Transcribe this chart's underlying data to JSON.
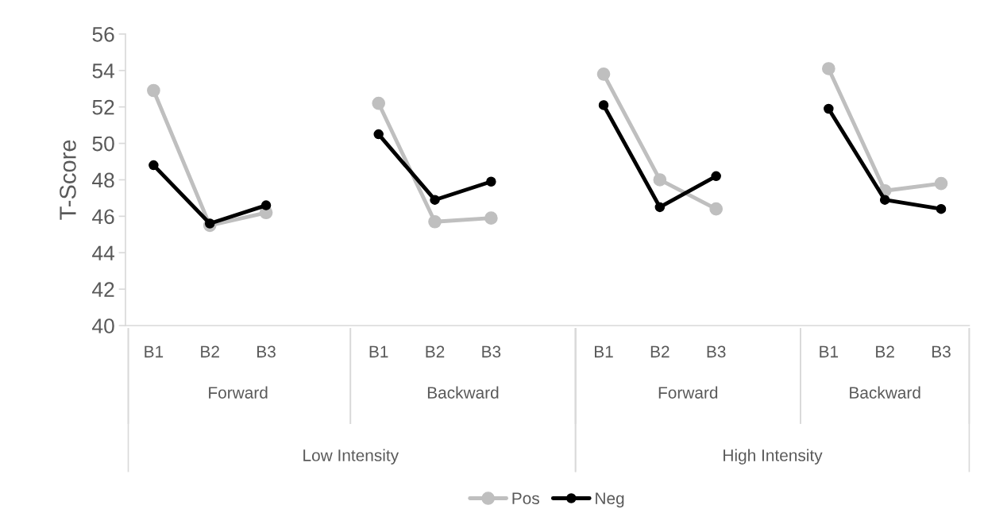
{
  "chart_data": {
    "type": "line",
    "ylabel": "T-Score",
    "categories": [
      "B1",
      "B2",
      "B3",
      null,
      "B1",
      "B2",
      "B3",
      null,
      "B1",
      "B2",
      "B3",
      null,
      "B1",
      "B2",
      "B3"
    ],
    "series": [
      {
        "name": "Pos",
        "color": "#bfbfbf",
        "values": [
          52.9,
          45.5,
          46.2,
          null,
          52.2,
          45.7,
          45.9,
          null,
          53.8,
          48.0,
          46.4,
          null,
          54.1,
          47.4,
          47.8
        ]
      },
      {
        "name": "Neg",
        "color": "#000000",
        "values": [
          48.8,
          45.6,
          46.6,
          null,
          50.5,
          46.9,
          47.9,
          null,
          52.1,
          46.5,
          48.2,
          null,
          51.9,
          46.9,
          46.4
        ]
      }
    ],
    "ylim": [
      40,
      56
    ],
    "yticks": [
      40,
      42,
      44,
      46,
      48,
      50,
      52,
      54,
      56
    ],
    "annotations": [
      "Forward",
      "Backward",
      "Forward",
      "Backward",
      "Low Intensity",
      "High Intensity"
    ],
    "marker": "circle",
    "line_style": "solid",
    "grid": false,
    "legend": "bottom"
  }
}
